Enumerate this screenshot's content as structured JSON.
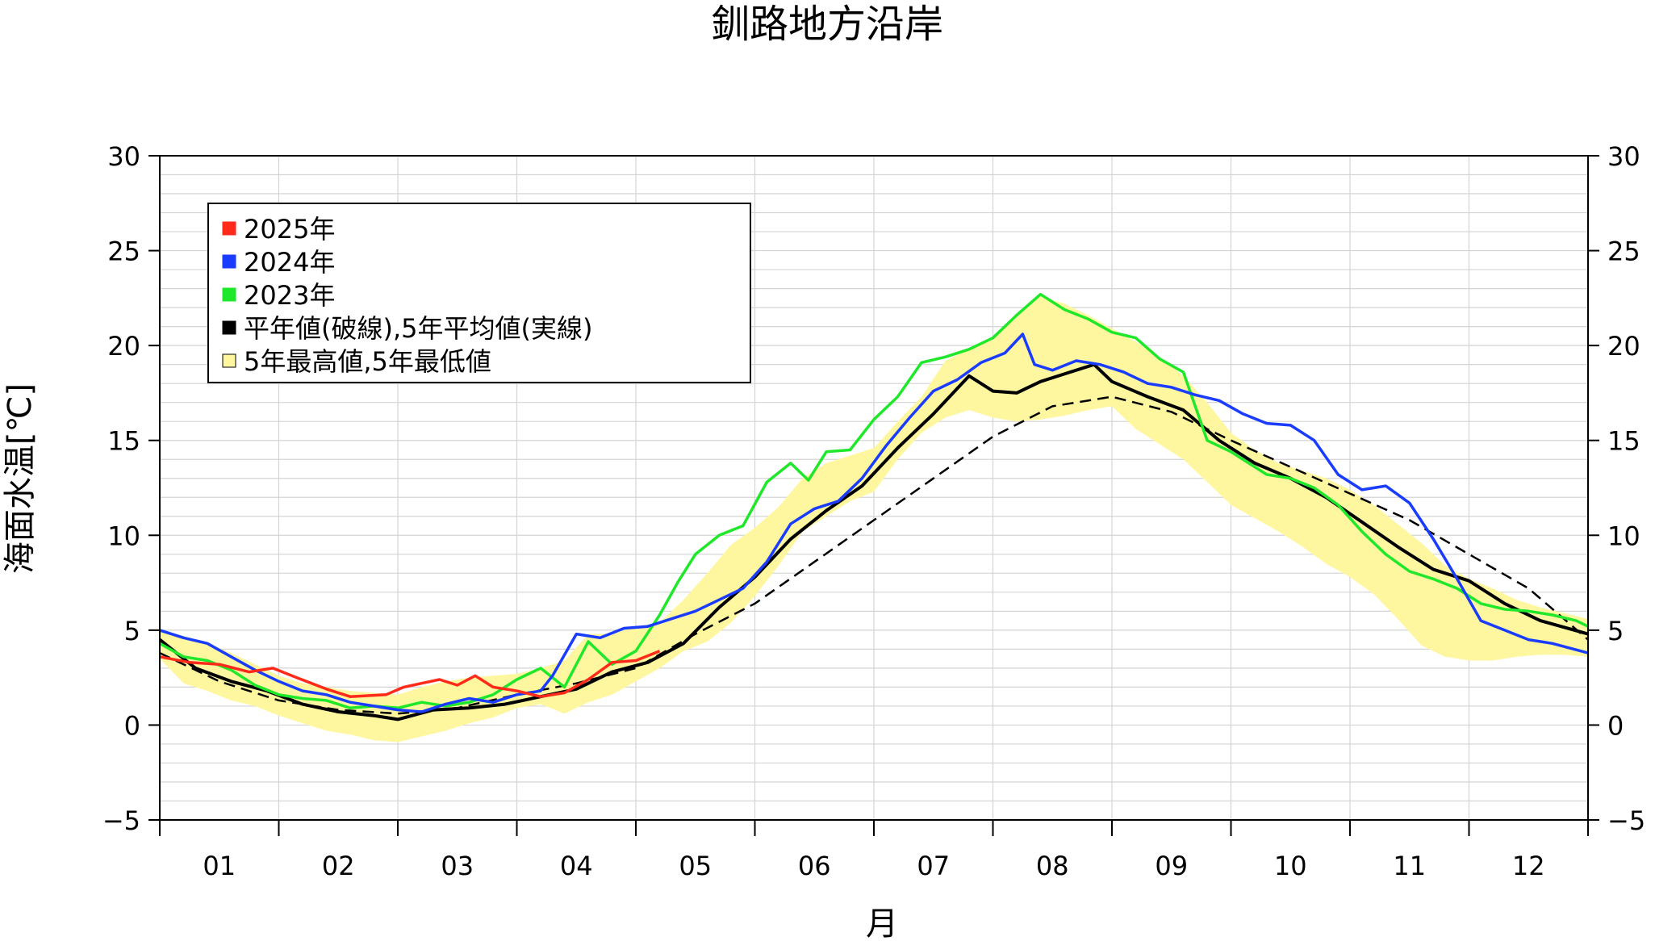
{
  "chart_data": {
    "type": "line",
    "title": "釧路地方沿岸",
    "xlabel": "月",
    "ylabel": "海面水温[℃]",
    "xlim": [
      0,
      12
    ],
    "ylim": [
      -5,
      30
    ],
    "y_ticks": [
      -5,
      0,
      5,
      10,
      15,
      20,
      25,
      30
    ],
    "y_tick_labels": [
      "−5",
      "0",
      "5",
      "10",
      "15",
      "20",
      "25",
      "30"
    ],
    "month_labels": [
      "01",
      "02",
      "03",
      "04",
      "05",
      "06",
      "07",
      "08",
      "09",
      "10",
      "11",
      "12"
    ],
    "minor_y_step": 1,
    "grid": true,
    "legend_placement": "top-left",
    "legend": [
      {
        "label": "2025年",
        "color": "#ff2a1a"
      },
      {
        "label": "2024年",
        "color": "#1a3cff"
      },
      {
        "label": "2023年",
        "color": "#1fe82b"
      },
      {
        "label": "平年値(破線),5年平均値(実線)",
        "color": "#000000"
      },
      {
        "label": "5年最高値,5年最低値",
        "color": "#fff7a0"
      }
    ],
    "series": [
      {
        "name": "2025年",
        "color": "#ff2a1a",
        "x": [
          0.0,
          0.25,
          0.5,
          0.75,
          0.95,
          1.15,
          1.4,
          1.6,
          1.9,
          2.05,
          2.2,
          2.35,
          2.5,
          2.65,
          2.8,
          3.0,
          3.2,
          3.4,
          3.6,
          3.8,
          4.0,
          4.2
        ],
        "y": [
          3.6,
          3.3,
          3.2,
          2.8,
          3.0,
          2.5,
          1.9,
          1.5,
          1.6,
          2.0,
          2.2,
          2.4,
          2.1,
          2.6,
          2.0,
          1.8,
          1.5,
          1.7,
          2.4,
          3.3,
          3.4,
          3.9
        ]
      },
      {
        "name": "2024年",
        "color": "#1a3cff",
        "x": [
          0.0,
          0.2,
          0.4,
          0.6,
          0.8,
          1.0,
          1.2,
          1.4,
          1.6,
          1.8,
          2.0,
          2.2,
          2.4,
          2.6,
          2.8,
          3.0,
          3.2,
          3.3,
          3.5,
          3.7,
          3.9,
          4.1,
          4.3,
          4.5,
          4.7,
          4.9,
          5.1,
          5.3,
          5.5,
          5.7,
          5.9,
          6.1,
          6.3,
          6.5,
          6.7,
          6.9,
          7.1,
          7.25,
          7.35,
          7.5,
          7.7,
          7.9,
          8.1,
          8.3,
          8.5,
          8.7,
          8.9,
          9.1,
          9.3,
          9.5,
          9.7,
          9.9,
          10.1,
          10.3,
          10.5,
          10.7,
          10.9,
          11.1,
          11.3,
          11.5,
          11.7,
          12.0
        ],
        "y": [
          5.0,
          4.6,
          4.3,
          3.6,
          2.9,
          2.3,
          1.8,
          1.6,
          1.2,
          1.0,
          0.8,
          0.7,
          1.1,
          1.4,
          1.2,
          1.6,
          1.8,
          2.6,
          4.8,
          4.6,
          5.1,
          5.2,
          5.6,
          6.0,
          6.6,
          7.2,
          8.6,
          10.6,
          11.4,
          11.8,
          13.0,
          14.7,
          16.2,
          17.6,
          18.2,
          19.1,
          19.6,
          20.6,
          19.0,
          18.7,
          19.2,
          19.0,
          18.6,
          18.0,
          17.8,
          17.4,
          17.1,
          16.4,
          15.9,
          15.8,
          15.0,
          13.2,
          12.4,
          12.6,
          11.7,
          9.8,
          7.7,
          5.5,
          5.0,
          4.5,
          4.3,
          3.8
        ]
      },
      {
        "name": "2023年",
        "color": "#1fe82b",
        "x": [
          0.0,
          0.2,
          0.4,
          0.6,
          0.8,
          1.0,
          1.2,
          1.4,
          1.6,
          1.8,
          2.0,
          2.2,
          2.4,
          2.6,
          2.8,
          3.0,
          3.2,
          3.4,
          3.6,
          3.8,
          4.0,
          4.2,
          4.35,
          4.5,
          4.7,
          4.9,
          5.1,
          5.3,
          5.45,
          5.6,
          5.8,
          6.0,
          6.2,
          6.4,
          6.6,
          6.8,
          7.0,
          7.2,
          7.4,
          7.6,
          7.8,
          8.0,
          8.2,
          8.4,
          8.6,
          8.8,
          9.0,
          9.15,
          9.3,
          9.5,
          9.7,
          9.9,
          10.1,
          10.3,
          10.5,
          10.7,
          10.9,
          11.1,
          11.3,
          11.5,
          11.7,
          11.9,
          12.0
        ],
        "y": [
          4.3,
          3.6,
          3.4,
          2.9,
          2.1,
          1.6,
          1.4,
          1.3,
          0.9,
          1.0,
          0.9,
          1.2,
          1.0,
          1.2,
          1.6,
          2.4,
          3.0,
          2.0,
          4.4,
          3.2,
          3.9,
          5.8,
          7.5,
          9.0,
          10.0,
          10.5,
          12.8,
          13.8,
          12.9,
          14.4,
          14.5,
          16.1,
          17.3,
          19.1,
          19.4,
          19.8,
          20.4,
          21.6,
          22.7,
          21.9,
          21.4,
          20.7,
          20.4,
          19.3,
          18.6,
          15.0,
          14.4,
          13.8,
          13.2,
          13.0,
          12.5,
          11.6,
          10.2,
          9.0,
          8.1,
          7.7,
          7.2,
          6.4,
          6.1,
          6.0,
          5.8,
          5.5,
          5.2
        ]
      },
      {
        "name": "",
        "color": "#000000",
        "dash": true,
        "x": [
          0.0,
          0.5,
          1.0,
          1.5,
          2.0,
          2.5,
          3.0,
          3.5,
          4.0,
          4.5,
          5.0,
          5.5,
          6.0,
          6.5,
          7.0,
          7.5,
          8.0,
          8.5,
          9.0,
          9.5,
          10.0,
          10.5,
          11.0,
          11.5,
          12.0
        ],
        "y": [
          3.8,
          2.3,
          1.3,
          0.8,
          0.6,
          0.9,
          1.6,
          2.2,
          3.0,
          4.8,
          6.4,
          8.6,
          10.8,
          13.0,
          15.2,
          16.8,
          17.3,
          16.5,
          15.0,
          13.6,
          12.2,
          10.8,
          9.0,
          7.2,
          4.5
        ]
      },
      {
        "name": "",
        "color": "#000000",
        "width": 4,
        "x": [
          0.0,
          0.3,
          0.6,
          0.9,
          1.2,
          1.5,
          1.8,
          2.0,
          2.3,
          2.6,
          2.9,
          3.2,
          3.5,
          3.8,
          4.1,
          4.4,
          4.7,
          5.0,
          5.3,
          5.6,
          5.9,
          6.2,
          6.5,
          6.8,
          7.0,
          7.2,
          7.4,
          7.6,
          7.85,
          8.0,
          8.3,
          8.6,
          8.9,
          9.2,
          9.5,
          9.8,
          10.1,
          10.4,
          10.7,
          11.0,
          11.3,
          11.6,
          12.0
        ],
        "y": [
          4.5,
          3.0,
          2.3,
          1.8,
          1.1,
          0.7,
          0.5,
          0.3,
          0.8,
          0.9,
          1.1,
          1.5,
          1.9,
          2.8,
          3.3,
          4.3,
          6.2,
          7.8,
          9.8,
          11.3,
          12.6,
          14.6,
          16.4,
          18.4,
          17.6,
          17.5,
          18.1,
          18.5,
          19.0,
          18.1,
          17.3,
          16.6,
          15.0,
          13.8,
          13.0,
          12.0,
          10.7,
          9.4,
          8.2,
          7.6,
          6.4,
          5.5,
          4.8
        ]
      }
    ],
    "band": {
      "name": "5年最高値,5年最低値",
      "color": "#fff7a0",
      "x": [
        0.0,
        0.2,
        0.4,
        0.6,
        0.8,
        1.0,
        1.2,
        1.4,
        1.6,
        1.8,
        2.0,
        2.2,
        2.4,
        2.6,
        2.8,
        3.0,
        3.2,
        3.4,
        3.6,
        3.8,
        4.0,
        4.2,
        4.4,
        4.6,
        4.8,
        5.0,
        5.2,
        5.4,
        5.6,
        5.8,
        6.0,
        6.2,
        6.4,
        6.6,
        6.8,
        7.0,
        7.2,
        7.4,
        7.6,
        7.8,
        8.0,
        8.2,
        8.4,
        8.6,
        8.8,
        9.0,
        9.2,
        9.4,
        9.6,
        9.8,
        10.0,
        10.2,
        10.4,
        10.6,
        10.8,
        11.0,
        11.2,
        11.4,
        11.6,
        11.8,
        12.0
      ],
      "upper": [
        5.0,
        4.7,
        4.3,
        3.8,
        3.2,
        2.6,
        2.2,
        2.0,
        1.8,
        1.7,
        1.6,
        2.0,
        2.3,
        2.5,
        2.6,
        2.7,
        3.0,
        3.4,
        4.8,
        4.8,
        5.2,
        5.4,
        6.6,
        8.0,
        9.5,
        10.4,
        11.5,
        13.0,
        13.8,
        14.2,
        14.6,
        16.0,
        17.3,
        19.2,
        19.8,
        20.3,
        21.5,
        22.6,
        22.2,
        21.6,
        20.9,
        20.2,
        19.4,
        18.4,
        17.0,
        15.4,
        14.5,
        13.8,
        13.4,
        13.0,
        12.4,
        11.6,
        10.6,
        9.6,
        8.4,
        7.7,
        7.2,
        6.6,
        6.2,
        5.9,
        5.6
      ],
      "lower": [
        3.5,
        2.2,
        1.8,
        1.3,
        1.0,
        0.5,
        0.1,
        -0.3,
        -0.5,
        -0.8,
        -0.9,
        -0.6,
        -0.3,
        0.1,
        0.4,
        0.9,
        1.1,
        0.6,
        1.2,
        1.6,
        2.3,
        3.0,
        3.9,
        4.4,
        5.4,
        6.8,
        8.4,
        10.2,
        11.0,
        11.8,
        12.3,
        14.0,
        15.4,
        16.2,
        16.6,
        16.2,
        16.0,
        16.1,
        16.3,
        16.6,
        16.8,
        15.6,
        14.8,
        14.0,
        12.8,
        11.6,
        10.9,
        10.2,
        9.4,
        8.5,
        7.8,
        6.9,
        5.6,
        4.2,
        3.6,
        3.4,
        3.4,
        3.6,
        3.7,
        3.7,
        3.6
      ]
    }
  }
}
